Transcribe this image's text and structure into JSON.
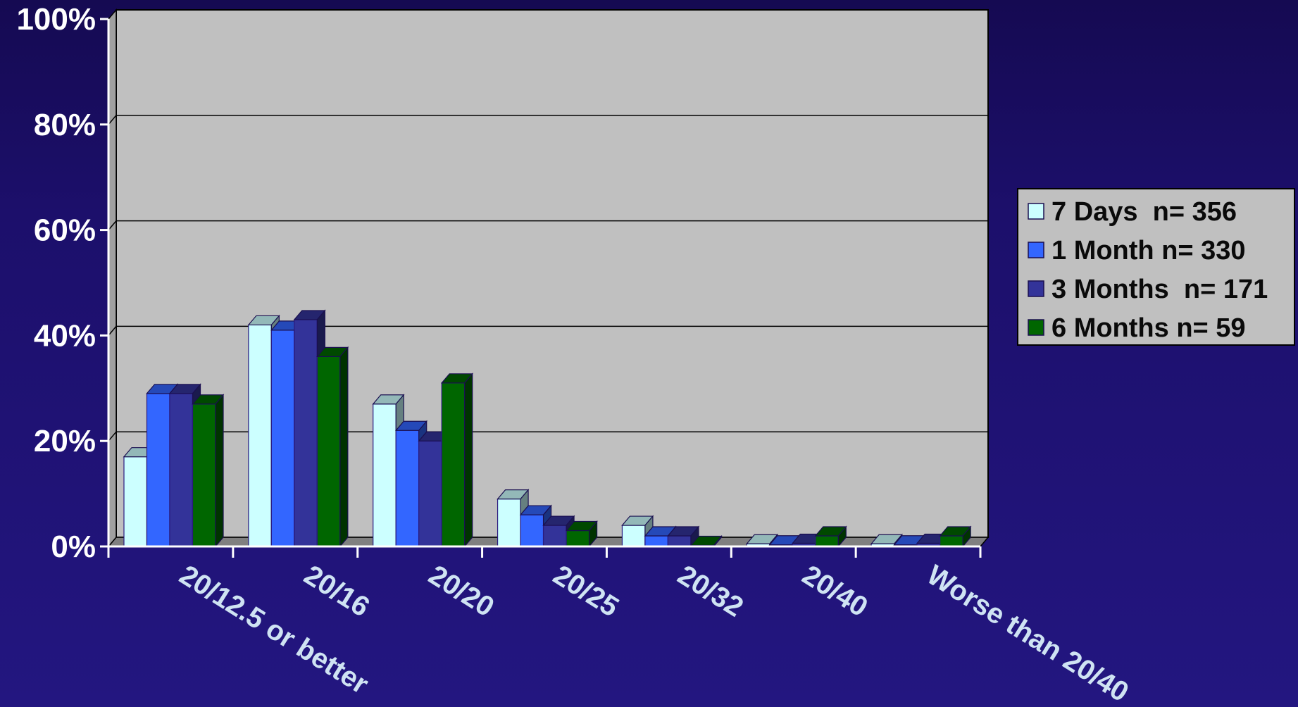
{
  "chart_data": {
    "type": "bar",
    "title": "",
    "xlabel": "",
    "ylabel": "",
    "ylim": [
      0,
      100
    ],
    "y_ticks": [
      "0%",
      "20%",
      "40%",
      "60%",
      "80%",
      "100%"
    ],
    "categories": [
      "20/12.5 or better",
      "20/16",
      "20/20",
      "20/25",
      "20/32",
      "20/40",
      "Worse than 20/40"
    ],
    "series": [
      {
        "name": "7 Days  n= 356",
        "values": [
          17,
          42,
          27,
          9,
          4,
          0.5,
          0.5
        ],
        "color": "#ccffff"
      },
      {
        "name": "1 Month n= 330",
        "values": [
          29,
          41,
          22,
          6,
          2,
          0.3,
          0.3
        ],
        "color": "#3366ff"
      },
      {
        "name": "3 Months  n= 171",
        "values": [
          29,
          43,
          20,
          4,
          2,
          0.6,
          0.6
        ],
        "color": "#333399"
      },
      {
        "name": "6 Months n= 59",
        "values": [
          27,
          36,
          31,
          3,
          0.2,
          2,
          2
        ],
        "color": "#006600"
      }
    ],
    "legend_position": "right",
    "grid": true,
    "plot_background": "#c0c0c0"
  }
}
